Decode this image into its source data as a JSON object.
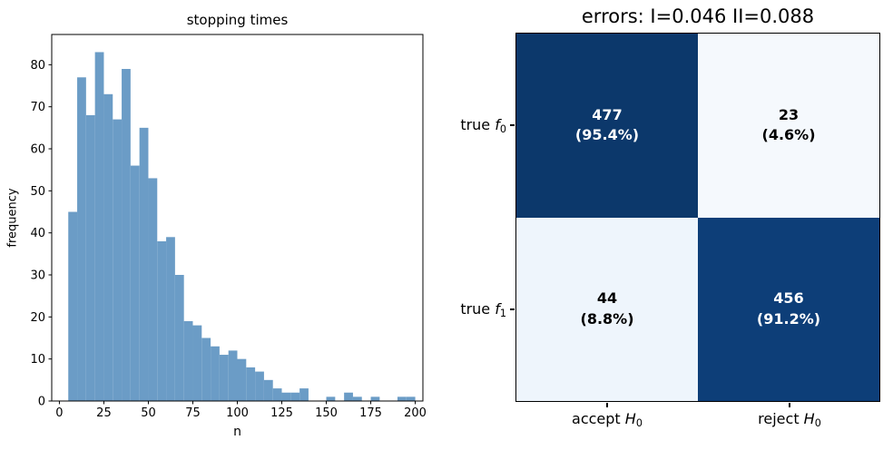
{
  "figure": {
    "background": "#ffffff"
  },
  "chart_data": [
    {
      "type": "bar",
      "title": "stopping times",
      "xlabel": "n",
      "ylabel": "frequency",
      "bin_start": 5,
      "bin_width": 5,
      "values": [
        45,
        77,
        68,
        83,
        73,
        67,
        79,
        56,
        65,
        53,
        38,
        39,
        30,
        19,
        18,
        15,
        13,
        11,
        12,
        10,
        8,
        7,
        5,
        3,
        2,
        2,
        3,
        0,
        0,
        1,
        0,
        2,
        1,
        0,
        1,
        0,
        0,
        1,
        1
      ],
      "xticks": [
        0,
        25,
        50,
        75,
        100,
        125,
        150,
        175,
        200
      ],
      "yticks": [
        0,
        10,
        20,
        30,
        40,
        50,
        60,
        70,
        80
      ],
      "xlim": [
        -4.3,
        204.3
      ],
      "ylim": [
        0,
        87.2
      ],
      "bar_color": "#6b9cc6",
      "axis_color": "#000000",
      "grid": false,
      "legend": false
    },
    {
      "type": "heatmap",
      "title": "errors: I=0.046 II=0.088",
      "row_labels": [
        {
          "prefix": "true ",
          "symbol": "f",
          "sub": "0"
        },
        {
          "prefix": "true ",
          "symbol": "f",
          "sub": "1"
        }
      ],
      "col_labels": [
        {
          "prefix": "accept ",
          "symbol": "H",
          "sub": "0"
        },
        {
          "prefix": "reject ",
          "symbol": "H",
          "sub": "0"
        }
      ],
      "cells": [
        [
          {
            "count": "477",
            "pct": "(95.4%)",
            "bg": "#0c386b",
            "fg": "#ffffff"
          },
          {
            "count": "23",
            "pct": "(4.6%)",
            "bg": "#f5f9fd",
            "fg": "#000000"
          }
        ],
        [
          {
            "count": "44",
            "pct": "(8.8%)",
            "bg": "#eef5fc",
            "fg": "#000000"
          },
          {
            "count": "456",
            "pct": "(91.2%)",
            "bg": "#0d3e78",
            "fg": "#ffffff"
          }
        ]
      ]
    }
  ]
}
